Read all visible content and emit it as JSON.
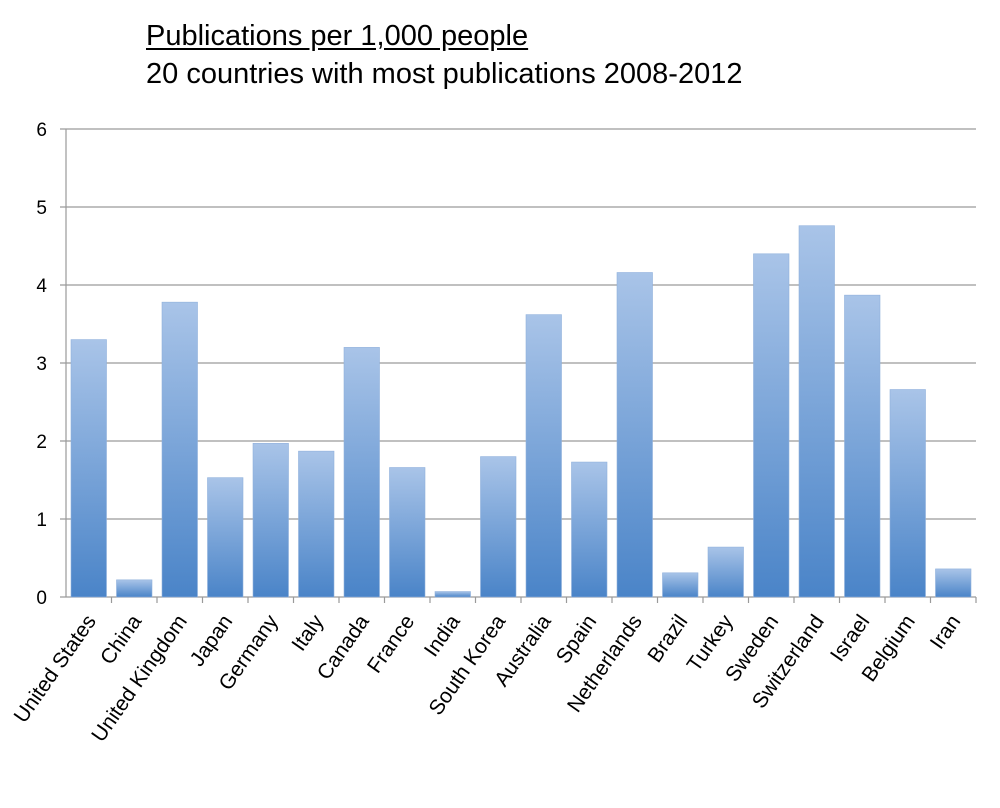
{
  "chart_data": {
    "type": "bar",
    "title": "Publications per 1,000 people",
    "subtitle": "20 countries with most publications 2008-2012",
    "xlabel": "",
    "ylabel": "",
    "ylim": [
      0,
      6
    ],
    "yticks": [
      "0",
      "1",
      "2",
      "3",
      "4",
      "5",
      "6"
    ],
    "grid": true,
    "categories": [
      "United States",
      "China",
      "United Kingdom",
      "Japan",
      "Germany",
      "Italy",
      "Canada",
      "France",
      "India",
      "South Korea",
      "Australia",
      "Spain",
      "Netherlands",
      "Brazil",
      "Turkey",
      "Sweden",
      "Switzerland",
      "Israel",
      "Belgium",
      "Iran"
    ],
    "values": [
      3.3,
      0.22,
      3.78,
      1.53,
      1.97,
      1.87,
      3.2,
      1.66,
      0.07,
      1.8,
      3.62,
      1.73,
      4.16,
      0.31,
      0.64,
      4.4,
      4.76,
      3.87,
      2.66,
      0.36
    ],
    "bar_color_top": "#a9c4e8",
    "bar_color_bottom": "#4a84c8",
    "grid_color": "#9a9a9a"
  }
}
